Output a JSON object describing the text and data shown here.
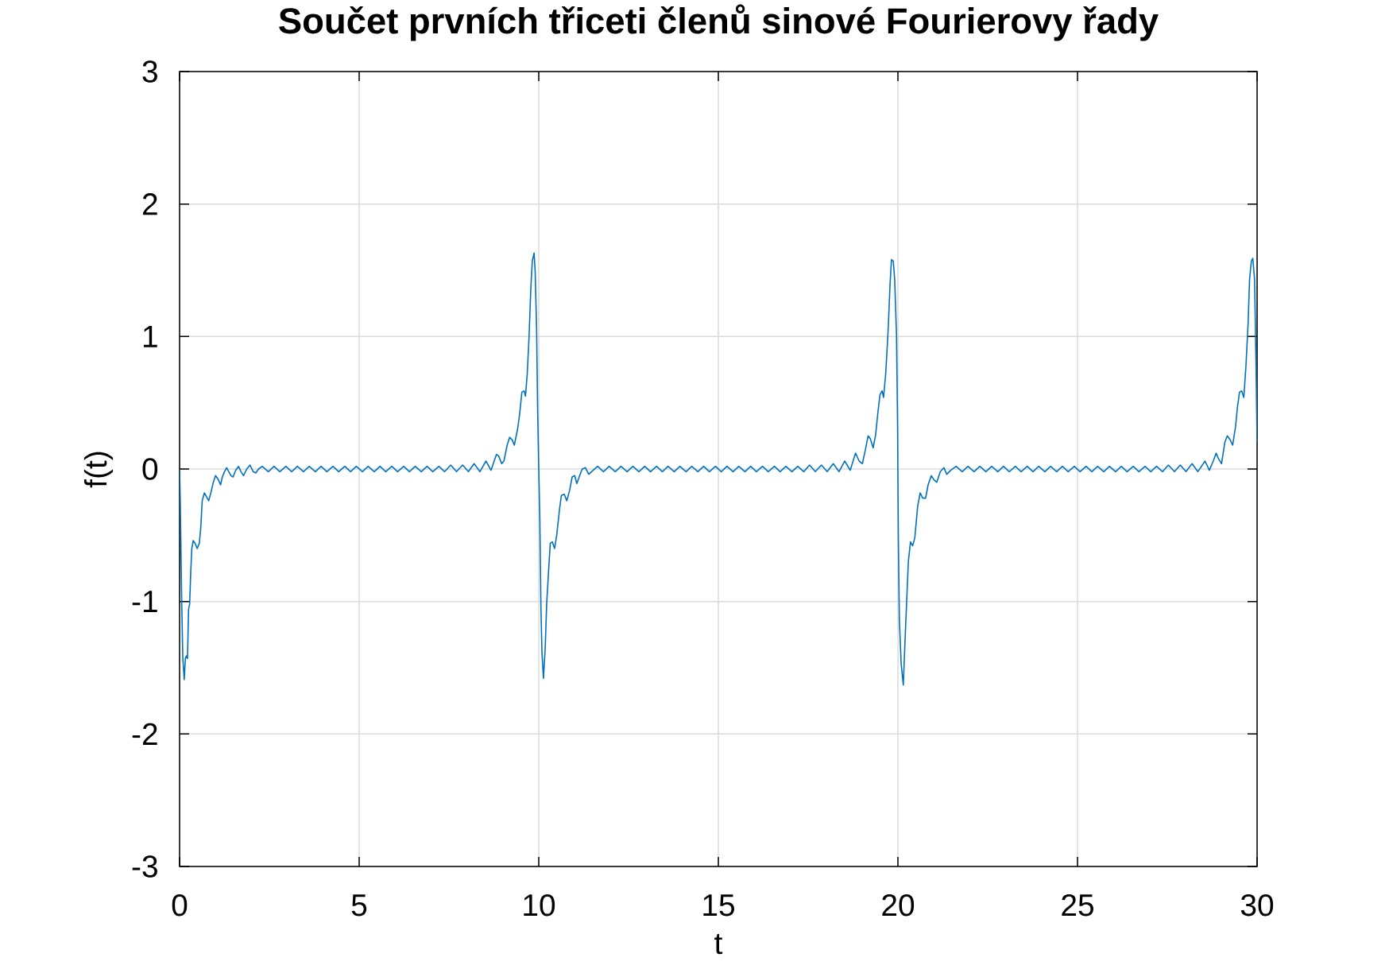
{
  "chart_data": {
    "type": "line",
    "title": "Součet prvních třiceti členů sinové Fourierovy řady",
    "xlabel": "t",
    "ylabel": "f(t)",
    "x": [
      0,
      0.02,
      0.06,
      0.09,
      0.13,
      0.16,
      0.19,
      0.22,
      0.25,
      0.28,
      0.31,
      0.34,
      0.38,
      0.43,
      0.49,
      0.55,
      0.59,
      0.63,
      0.69,
      0.75,
      0.81,
      0.87,
      0.94,
      1.0,
      1.08,
      1.14,
      1.19,
      1.25,
      1.31,
      1.37,
      1.43,
      1.49,
      1.56,
      1.64,
      1.71,
      1.78,
      1.87,
      1.96,
      2.05,
      2.12,
      2.2,
      2.3,
      2.47,
      2.63,
      2.79,
      2.96,
      3.12,
      3.28,
      3.45,
      3.61,
      3.78,
      3.94,
      4.1,
      4.27,
      4.43,
      4.6,
      4.76,
      4.92,
      5.09,
      5.25,
      5.42,
      5.58,
      5.74,
      5.91,
      6.07,
      6.24,
      6.4,
      6.56,
      6.73,
      6.89,
      7.05,
      7.22,
      7.38,
      7.55,
      7.71,
      7.88,
      8.04,
      8.2,
      8.36,
      8.53,
      8.67,
      8.82,
      8.88,
      8.97,
      9.03,
      9.12,
      9.19,
      9.26,
      9.32,
      9.41,
      9.47,
      9.53,
      9.59,
      9.63,
      9.68,
      9.73,
      9.78,
      9.82,
      9.87,
      9.9,
      9.94,
      9.97,
      10.0,
      10.03,
      10.06,
      10.09,
      10.13,
      10.18,
      10.22,
      10.28,
      10.32,
      10.38,
      10.44,
      10.5,
      10.58,
      10.63,
      10.71,
      10.78,
      10.86,
      10.93,
      11.0,
      11.06,
      11.14,
      11.21,
      11.3,
      11.39,
      11.47,
      11.64,
      11.8,
      11.96,
      12.13,
      12.29,
      12.46,
      12.62,
      12.79,
      12.95,
      13.11,
      13.28,
      13.44,
      13.6,
      13.77,
      13.93,
      14.1,
      14.26,
      14.43,
      14.59,
      14.75,
      14.92,
      15.08,
      15.24,
      15.41,
      15.57,
      15.74,
      15.9,
      16.06,
      16.23,
      16.39,
      16.56,
      16.72,
      16.88,
      17.05,
      17.21,
      17.38,
      17.54,
      17.7,
      17.87,
      18.03,
      18.2,
      18.36,
      18.52,
      18.67,
      18.82,
      18.92,
      19.01,
      19.09,
      19.17,
      19.23,
      19.31,
      19.38,
      19.44,
      19.5,
      19.56,
      19.6,
      19.66,
      19.73,
      19.78,
      19.82,
      19.87,
      19.91,
      19.96,
      19.99,
      20.01,
      20.04,
      20.09,
      20.15,
      20.19,
      20.24,
      20.29,
      20.35,
      20.41,
      20.47,
      20.55,
      20.62,
      20.69,
      20.77,
      20.84,
      20.93,
      21.0,
      21.08,
      21.18,
      21.28,
      21.36,
      21.47,
      21.62,
      21.79,
      21.95,
      22.12,
      22.28,
      22.45,
      22.61,
      22.78,
      22.94,
      23.1,
      23.27,
      23.43,
      23.6,
      23.76,
      23.92,
      24.09,
      24.25,
      24.42,
      24.58,
      24.74,
      24.91,
      25.07,
      25.24,
      25.4,
      25.56,
      25.73,
      25.89,
      26.06,
      26.22,
      26.38,
      26.55,
      26.71,
      26.88,
      27.04,
      27.2,
      27.37,
      27.53,
      27.7,
      27.86,
      28.02,
      28.19,
      28.35,
      28.55,
      28.67,
      28.78,
      28.86,
      28.92,
      29.01,
      29.1,
      29.17,
      29.25,
      29.32,
      29.4,
      29.45,
      29.51,
      29.57,
      29.63,
      29.69,
      29.75,
      29.79,
      29.84,
      29.88,
      29.93,
      29.97,
      30
    ],
    "values": [
      0,
      -0.26,
      -1.02,
      -1.43,
      -1.59,
      -1.43,
      -1.41,
      -1.43,
      -1.06,
      -1.02,
      -0.78,
      -0.6,
      -0.54,
      -0.56,
      -0.6,
      -0.56,
      -0.44,
      -0.24,
      -0.18,
      -0.21,
      -0.24,
      -0.18,
      -0.1,
      -0.05,
      -0.08,
      -0.12,
      -0.06,
      -0.02,
      0.01,
      -0.02,
      -0.05,
      -0.06,
      -0.01,
      0.02,
      -0.02,
      -0.05,
      0.0,
      0.03,
      -0.02,
      -0.03,
      0.0,
      0.02,
      -0.02,
      0.02,
      -0.02,
      0.02,
      -0.02,
      0.02,
      -0.02,
      0.02,
      -0.02,
      0.02,
      -0.02,
      0.02,
      -0.02,
      0.02,
      -0.02,
      0.02,
      -0.02,
      0.02,
      -0.02,
      0.02,
      -0.02,
      0.02,
      -0.02,
      0.02,
      -0.02,
      0.02,
      -0.02,
      0.02,
      -0.02,
      0.02,
      -0.02,
      0.03,
      -0.02,
      0.03,
      -0.02,
      0.04,
      -0.02,
      0.06,
      -0.01,
      0.11,
      0.1,
      0.04,
      0.06,
      0.18,
      0.24,
      0.22,
      0.18,
      0.3,
      0.42,
      0.58,
      0.59,
      0.55,
      0.72,
      1.0,
      1.37,
      1.57,
      1.63,
      1.49,
      1.06,
      0.42,
      0,
      -0.38,
      -1.04,
      -1.39,
      -1.58,
      -1.35,
      -1.02,
      -0.74,
      -0.56,
      -0.55,
      -0.6,
      -0.5,
      -0.3,
      -0.2,
      -0.19,
      -0.24,
      -0.16,
      -0.06,
      -0.05,
      -0.11,
      -0.05,
      0.0,
      0.01,
      -0.04,
      -0.02,
      0.02,
      -0.02,
      0.02,
      -0.02,
      0.02,
      -0.02,
      0.02,
      -0.02,
      0.02,
      -0.02,
      0.02,
      -0.02,
      0.02,
      -0.02,
      0.02,
      -0.02,
      0.02,
      -0.02,
      0.02,
      -0.02,
      0.02,
      -0.02,
      0.02,
      -0.02,
      0.02,
      -0.02,
      0.02,
      -0.02,
      0.02,
      -0.02,
      0.02,
      -0.02,
      0.02,
      -0.02,
      0.02,
      -0.02,
      0.03,
      -0.02,
      0.03,
      -0.02,
      0.04,
      -0.02,
      0.06,
      -0.01,
      0.12,
      0.06,
      0.04,
      0.14,
      0.25,
      0.23,
      0.16,
      0.26,
      0.42,
      0.56,
      0.59,
      0.54,
      0.72,
      1.06,
      1.39,
      1.58,
      1.57,
      1.43,
      1.02,
      0.34,
      -0.48,
      -1.14,
      -1.47,
      -1.63,
      -1.35,
      -1.02,
      -0.7,
      -0.55,
      -0.58,
      -0.52,
      -0.28,
      -0.18,
      -0.22,
      -0.22,
      -0.12,
      -0.05,
      -0.08,
      -0.1,
      -0.02,
      0.01,
      -0.04,
      -0.01,
      0.02,
      -0.02,
      0.02,
      -0.02,
      0.02,
      -0.02,
      0.02,
      -0.02,
      0.02,
      -0.02,
      0.02,
      -0.02,
      0.02,
      -0.02,
      0.02,
      -0.02,
      0.02,
      -0.02,
      0.02,
      -0.02,
      0.02,
      -0.02,
      0.02,
      -0.02,
      0.02,
      -0.02,
      0.02,
      -0.02,
      0.02,
      -0.02,
      0.02,
      -0.02,
      0.02,
      -0.02,
      0.02,
      -0.02,
      0.03,
      -0.02,
      0.03,
      -0.02,
      0.04,
      -0.02,
      0.06,
      -0.01,
      0.06,
      0.12,
      0.08,
      0.04,
      0.2,
      0.25,
      0.22,
      0.18,
      0.32,
      0.46,
      0.58,
      0.59,
      0.54,
      0.78,
      1.1,
      1.43,
      1.57,
      1.59,
      1.43,
      0.78,
      0.2
    ],
    "color": "#0072bd",
    "xlim": [
      0,
      30
    ],
    "ylim": [
      -3,
      3
    ],
    "xticks": [
      0,
      5,
      10,
      15,
      20,
      25,
      30
    ],
    "yticks": [
      -3,
      -2,
      -1,
      0,
      1,
      2,
      3
    ],
    "grid": true
  }
}
